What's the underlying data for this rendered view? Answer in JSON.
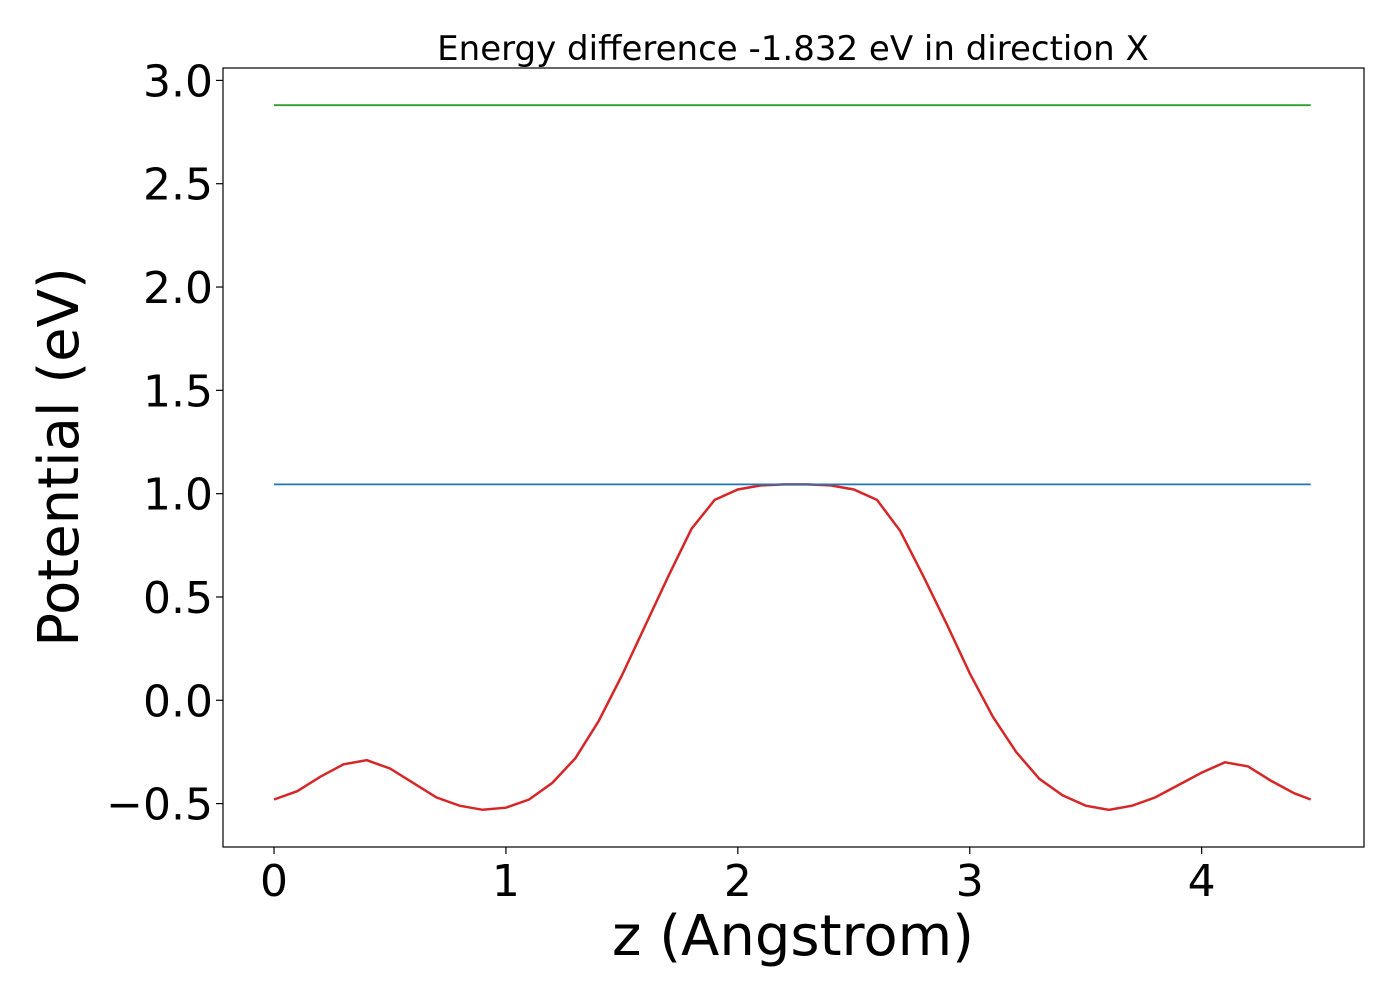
{
  "chart_data": {
    "type": "line",
    "title": "Energy difference -1.832 eV in direction X",
    "xlabel": "z (Angstrom)",
    "ylabel": "Potential (eV)",
    "xlim": [
      -0.22,
      4.7
    ],
    "ylim": [
      -0.71,
      3.06
    ],
    "xticks": [
      0,
      1,
      2,
      3,
      4
    ],
    "xtick_labels": [
      "0",
      "1",
      "2",
      "3",
      "4"
    ],
    "yticks": [
      -0.5,
      0.0,
      0.5,
      1.0,
      1.5,
      2.0,
      2.5,
      3.0
    ],
    "ytick_labels": [
      "−0.5",
      "0.0",
      "0.5",
      "1.0",
      "1.5",
      "2.0",
      "2.5",
      "3.0"
    ],
    "grid": false,
    "series": [
      {
        "color": "#d62728",
        "x": [
          0.0,
          0.1,
          0.2,
          0.3,
          0.4,
          0.5,
          0.6,
          0.7,
          0.8,
          0.9,
          1.0,
          1.1,
          1.2,
          1.3,
          1.4,
          1.5,
          1.6,
          1.7,
          1.8,
          1.9,
          2.0,
          2.1,
          2.2,
          2.3,
          2.4,
          2.5,
          2.6,
          2.7,
          2.8,
          2.9,
          3.0,
          3.1,
          3.2,
          3.3,
          3.4,
          3.5,
          3.6,
          3.7,
          3.8,
          3.9,
          4.0,
          4.1,
          4.2,
          4.3,
          4.4,
          4.47
        ],
        "y": [
          -0.48,
          -0.44,
          -0.37,
          -0.31,
          -0.29,
          -0.33,
          -0.4,
          -0.47,
          -0.51,
          -0.53,
          -0.52,
          -0.48,
          -0.4,
          -0.28,
          -0.1,
          0.12,
          0.36,
          0.6,
          0.83,
          0.97,
          1.02,
          1.04,
          1.045,
          1.045,
          1.04,
          1.02,
          0.97,
          0.82,
          0.6,
          0.37,
          0.13,
          -0.08,
          -0.25,
          -0.38,
          -0.46,
          -0.51,
          -0.53,
          -0.51,
          -0.47,
          -0.41,
          -0.35,
          -0.3,
          -0.32,
          -0.39,
          -0.45,
          -0.48
        ]
      },
      {
        "color": "#1f77b4",
        "x": [
          0.0,
          4.47
        ],
        "y": [
          1.045,
          1.045
        ]
      },
      {
        "color": "#2ca02c",
        "x": [
          0.0,
          4.47
        ],
        "y": [
          2.88,
          2.88
        ]
      }
    ]
  }
}
